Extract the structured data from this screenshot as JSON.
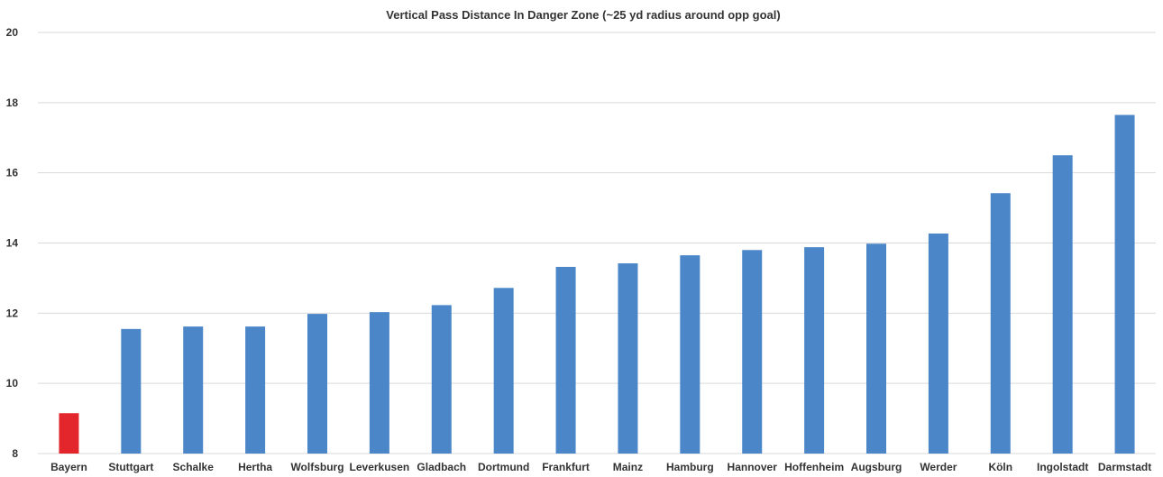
{
  "chart_data": {
    "type": "bar",
    "title": "Vertical Pass Distance In Danger Zone (~25 yd radius around opp goal)",
    "xlabel": "",
    "ylabel": "",
    "ylim": [
      8,
      20
    ],
    "yticks": [
      8,
      10,
      12,
      14,
      16,
      18,
      20
    ],
    "grid": true,
    "legend": "none",
    "categories": [
      "Bayern",
      "Stuttgart",
      "Schalke",
      "Hertha",
      "Wolfsburg",
      "Leverkusen",
      "Gladbach",
      "Dortmund",
      "Frankfurt",
      "Mainz",
      "Hamburg",
      "Hannover",
      "Hoffenheim",
      "Augsburg",
      "Werder",
      "Köln",
      "Ingolstadt",
      "Darmstadt"
    ],
    "series": [
      {
        "values": [
          9.15,
          11.55,
          11.62,
          11.62,
          11.98,
          12.03,
          12.23,
          12.72,
          13.32,
          13.42,
          13.65,
          13.8,
          13.88,
          13.98,
          14.27,
          15.42,
          16.5,
          17.65
        ]
      }
    ],
    "colors": {
      "default_bar": "#4a86c8",
      "highlight_bar": "#e2262b",
      "gridline": "#d9d9d9",
      "axis_text": "#333333"
    },
    "highlight_category": "Bayern"
  }
}
